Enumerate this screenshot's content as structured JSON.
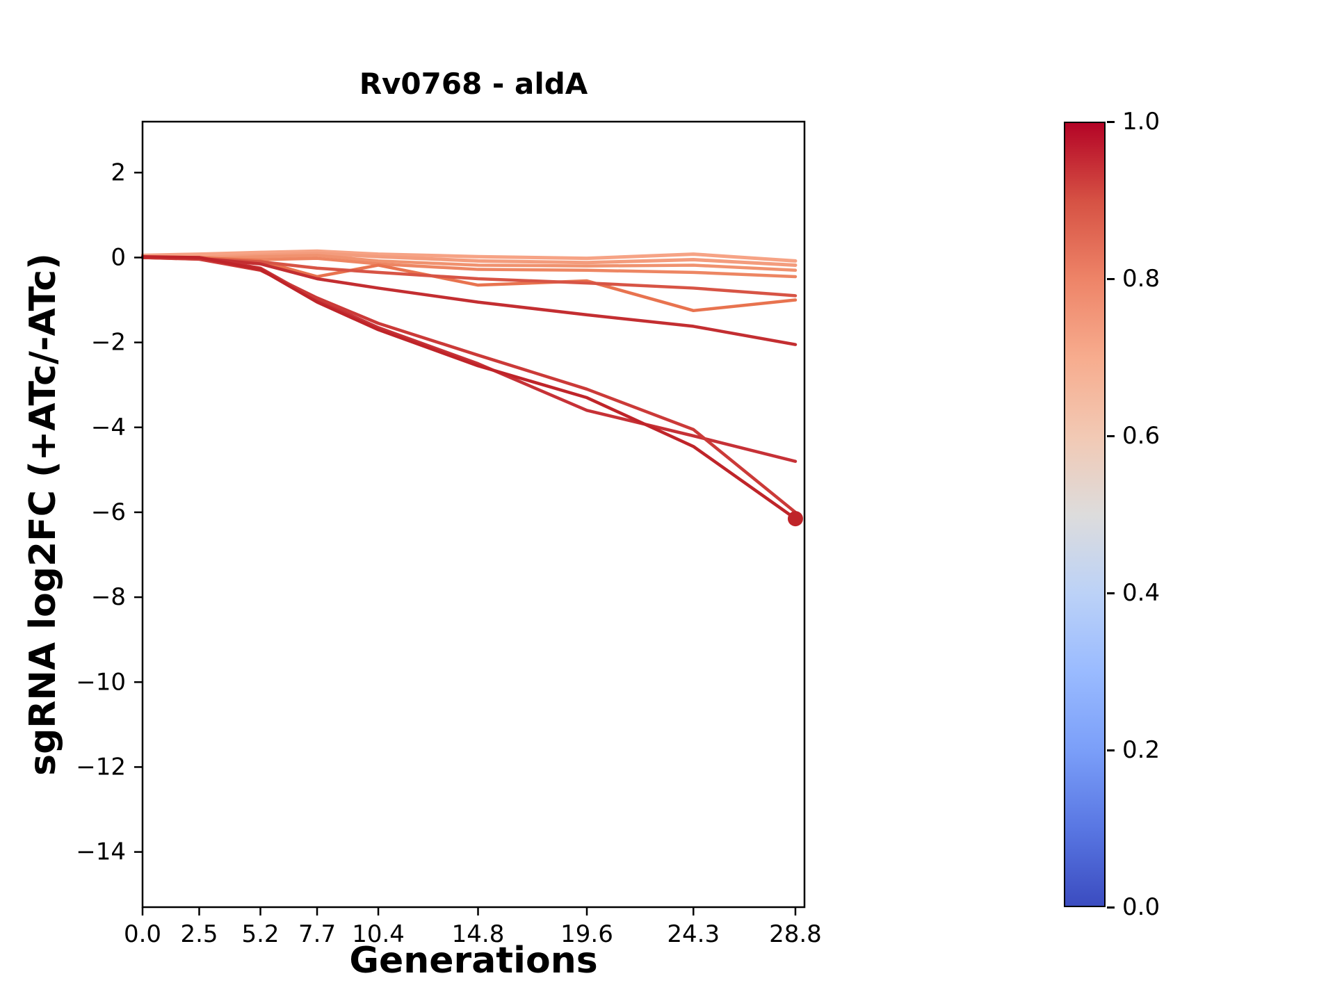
{
  "chart_data": {
    "type": "line",
    "title": "Rv0768 - aldA",
    "xlabel": "Generations",
    "ylabel": "sgRNA log2FC (+ATc/-ATc)",
    "x": [
      0.0,
      2.5,
      5.2,
      7.7,
      10.4,
      14.8,
      19.6,
      24.3,
      28.8
    ],
    "xtick_labels": [
      "0.0",
      "2.5",
      "5.2",
      "7.7",
      "10.4",
      "14.8",
      "19.6",
      "24.3",
      "28.8"
    ],
    "ytick_values": [
      2,
      0,
      -2,
      -4,
      -6,
      -8,
      -10,
      -12,
      -14
    ],
    "ytick_labels": [
      "2",
      "0",
      "−2",
      "−4",
      "−6",
      "−8",
      "−10",
      "−12",
      "−14"
    ],
    "xlim": [
      0,
      29.2
    ],
    "ylim": [
      -15.3,
      3.2
    ],
    "grid": false,
    "background": "#ffffff",
    "axes_color": "#000000",
    "legend": "colorbar-right",
    "series": [
      {
        "name": "s1",
        "colormap_value": 0.66,
        "color": "#f6a385",
        "linewidth": 5,
        "marker_end": false,
        "values": [
          0.05,
          0.08,
          0.12,
          0.15,
          0.08,
          0.02,
          -0.02,
          0.08,
          -0.08
        ]
      },
      {
        "name": "s2",
        "colormap_value": 0.68,
        "color": "#f39c7d",
        "linewidth": 5,
        "marker_end": false,
        "values": [
          0.02,
          0.0,
          0.05,
          0.1,
          0.02,
          -0.08,
          -0.12,
          -0.05,
          -0.18
        ]
      },
      {
        "name": "s3",
        "colormap_value": 0.72,
        "color": "#f0926f",
        "linewidth": 4.5,
        "marker_end": false,
        "values": [
          0.0,
          -0.04,
          0.02,
          0.05,
          -0.08,
          -0.18,
          -0.2,
          -0.18,
          -0.3
        ]
      },
      {
        "name": "s4",
        "colormap_value": 0.75,
        "color": "#ed8663",
        "linewidth": 4.5,
        "marker_end": false,
        "values": [
          0.0,
          -0.02,
          -0.05,
          -0.02,
          -0.15,
          -0.28,
          -0.3,
          -0.35,
          -0.45
        ]
      },
      {
        "name": "s5",
        "colormap_value": 0.78,
        "color": "#e8734f",
        "linewidth": 4.5,
        "marker_end": false,
        "values": [
          0.0,
          0.0,
          -0.08,
          -0.45,
          -0.18,
          -0.65,
          -0.55,
          -1.25,
          -1.0
        ]
      },
      {
        "name": "s6",
        "colormap_value": 0.84,
        "color": "#d75445",
        "linewidth": 4.5,
        "marker_end": false,
        "values": [
          0.0,
          -0.03,
          -0.1,
          -0.25,
          -0.35,
          -0.5,
          -0.6,
          -0.72,
          -0.9
        ]
      },
      {
        "name": "s7",
        "colormap_value": 0.93,
        "color": "#c32e31",
        "linewidth": 4.5,
        "marker_end": false,
        "values": [
          0.0,
          -0.02,
          -0.15,
          -0.5,
          -0.72,
          -1.05,
          -1.35,
          -1.62,
          -2.05
        ]
      },
      {
        "name": "s8",
        "colormap_value": 0.92,
        "color": "#c63136",
        "linewidth": 4.5,
        "marker_end": false,
        "values": [
          0.0,
          0.0,
          -0.25,
          -1.0,
          -1.65,
          -2.5,
          -3.6,
          -4.2,
          -4.8
        ]
      },
      {
        "name": "s9",
        "colormap_value": 0.9,
        "color": "#cb3a38",
        "linewidth": 4.5,
        "marker_end": false,
        "values": [
          0.0,
          -0.04,
          -0.3,
          -0.95,
          -1.55,
          -2.3,
          -3.1,
          -4.05,
          -6.0
        ]
      },
      {
        "name": "s10",
        "colormap_value": 0.95,
        "color": "#bf2429",
        "linewidth": 4.5,
        "marker_end": true,
        "values": [
          0.02,
          0.0,
          -0.28,
          -1.05,
          -1.7,
          -2.55,
          -3.3,
          -4.45,
          -6.15
        ]
      }
    ],
    "colorbar": {
      "colormap": "coolwarm",
      "ticks": [
        "1.0",
        "0.8",
        "0.6",
        "0.4",
        "0.2",
        "0.0"
      ],
      "range": [
        0.0,
        1.0
      ],
      "stops": [
        {
          "pos": 0.0,
          "color": "#3b4cc0"
        },
        {
          "pos": 0.1,
          "color": "#5977e3"
        },
        {
          "pos": 0.2,
          "color": "#7b9ff9"
        },
        {
          "pos": 0.3,
          "color": "#9abbff"
        },
        {
          "pos": 0.4,
          "color": "#bcd2f7"
        },
        {
          "pos": 0.5,
          "color": "#dddcdc"
        },
        {
          "pos": 0.6,
          "color": "#f2c9b4"
        },
        {
          "pos": 0.7,
          "color": "#f7ac8e"
        },
        {
          "pos": 0.8,
          "color": "#ee8468"
        },
        {
          "pos": 0.9,
          "color": "#d65244"
        },
        {
          "pos": 1.0,
          "color": "#b40426"
        }
      ]
    }
  }
}
